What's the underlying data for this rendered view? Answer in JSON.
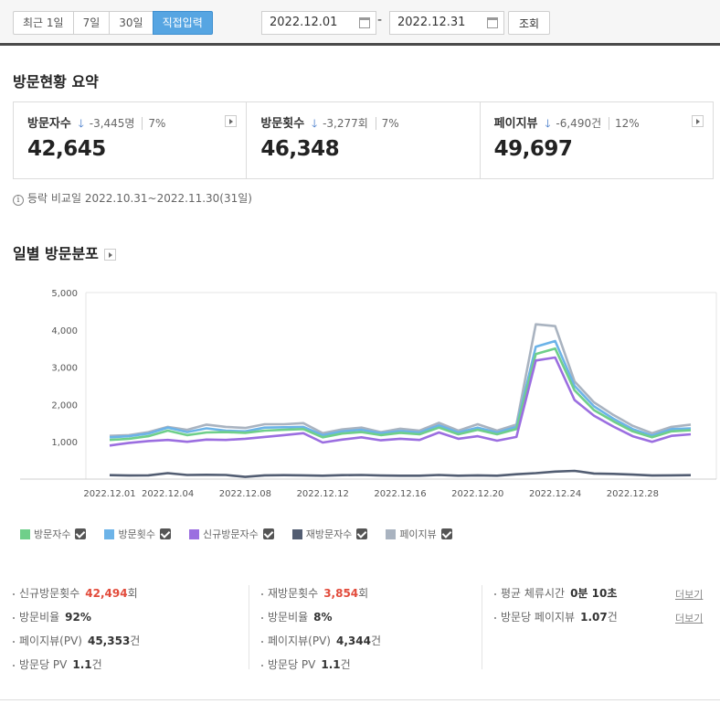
{
  "toolbar": {
    "period_buttons": [
      "최근 1일",
      "7일",
      "30일",
      "직접입력"
    ],
    "start_date": "2022.12.01",
    "date_separator": "-",
    "end_date": "2022.12.31",
    "search_label": "조회"
  },
  "summary": {
    "title": "방문현황 요약",
    "cards": [
      {
        "label": "방문자수",
        "delta": "-3,445명",
        "pct": "7%",
        "value": "42,645"
      },
      {
        "label": "방문횟수",
        "delta": "-3,277회",
        "pct": "7%",
        "value": "46,348"
      },
      {
        "label": "페이지뷰",
        "delta": "-6,490건",
        "pct": "12%",
        "value": "49,697"
      }
    ],
    "down_arrow": "🡓",
    "compare_note": "등락 비교일 2022.10.31~2022.11.30(31일)",
    "info_glyph": "i"
  },
  "daily": {
    "title": "일별 방문분포"
  },
  "chart_data": {
    "type": "line",
    "x": [
      "2022.12.01",
      "2022.12.02",
      "2022.12.03",
      "2022.12.04",
      "2022.12.05",
      "2022.12.06",
      "2022.12.07",
      "2022.12.08",
      "2022.12.09",
      "2022.12.10",
      "2022.12.11",
      "2022.12.12",
      "2022.12.13",
      "2022.12.14",
      "2022.12.15",
      "2022.12.16",
      "2022.12.17",
      "2022.12.18",
      "2022.12.19",
      "2022.12.20",
      "2022.12.21",
      "2022.12.22",
      "2022.12.23",
      "2022.12.24",
      "2022.12.25",
      "2022.12.26",
      "2022.12.27",
      "2022.12.28",
      "2022.12.29",
      "2022.12.30",
      "2022.12.31"
    ],
    "x_tick_labels": [
      "2022.12.01",
      "2022.12.04",
      "2022.12.08",
      "2022.12.12",
      "2022.12.16",
      "2022.12.20",
      "2022.12.24",
      "2022.12.28"
    ],
    "x_tick_indices": [
      0,
      3,
      7,
      11,
      15,
      19,
      23,
      27
    ],
    "y_ticks": [
      "5,000",
      "4,000",
      "3,000",
      "2,000",
      "1,000"
    ],
    "ylim": [
      0,
      5000
    ],
    "series": [
      {
        "name": "방문자수",
        "color": "#6fcf8a",
        "values": [
          1050,
          1080,
          1150,
          1300,
          1180,
          1250,
          1260,
          1240,
          1300,
          1320,
          1340,
          1120,
          1220,
          1260,
          1180,
          1240,
          1200,
          1380,
          1200,
          1320,
          1200,
          1340,
          3350,
          3500,
          2380,
          1850,
          1550,
          1280,
          1120,
          1280,
          1310
        ]
      },
      {
        "name": "방문횟수",
        "color": "#6cb3e8",
        "values": [
          1120,
          1150,
          1220,
          1380,
          1260,
          1360,
          1300,
          1280,
          1380,
          1390,
          1400,
          1180,
          1280,
          1320,
          1230,
          1290,
          1250,
          1440,
          1250,
          1380,
          1250,
          1400,
          3550,
          3700,
          2500,
          1950,
          1620,
          1340,
          1170,
          1340,
          1360
        ]
      },
      {
        "name": "신규방문자수",
        "color": "#9b6ee0",
        "values": [
          900,
          970,
          1020,
          1050,
          1000,
          1060,
          1050,
          1080,
          1130,
          1180,
          1230,
          980,
          1060,
          1120,
          1040,
          1080,
          1050,
          1250,
          1080,
          1150,
          1030,
          1130,
          3180,
          3260,
          2120,
          1700,
          1410,
          1150,
          1000,
          1160,
          1200
        ]
      },
      {
        "name": "재방문자수",
        "color": "#525d72",
        "values": [
          105,
          95,
          100,
          160,
          110,
          115,
          110,
          60,
          100,
          105,
          100,
          90,
          105,
          110,
          95,
          90,
          90,
          110,
          90,
          100,
          90,
          130,
          160,
          200,
          220,
          150,
          140,
          120,
          95,
          100,
          105
        ]
      },
      {
        "name": "페이지뷰",
        "color": "#a9b3c0",
        "values": [
          1160,
          1180,
          1260,
          1400,
          1320,
          1460,
          1400,
          1370,
          1470,
          1470,
          1500,
          1230,
          1330,
          1380,
          1260,
          1350,
          1300,
          1510,
          1300,
          1470,
          1300,
          1460,
          4150,
          4100,
          2620,
          2060,
          1720,
          1430,
          1230,
          1400,
          1460
        ]
      }
    ]
  },
  "stats": {
    "col1": [
      {
        "label": "신규방문횟수",
        "value": "42,494",
        "unit": "회",
        "red": true
      },
      {
        "label": "방문비율",
        "value": "92%",
        "unit": ""
      },
      {
        "label": "페이지뷰(PV)",
        "value": "45,353",
        "unit": "건"
      },
      {
        "label": "방문당 PV",
        "value": "1.1",
        "unit": "건"
      }
    ],
    "col2": [
      {
        "label": "재방문횟수",
        "value": "3,854",
        "unit": "회",
        "red": true
      },
      {
        "label": "방문비율",
        "value": "8%",
        "unit": ""
      },
      {
        "label": "페이지뷰(PV)",
        "value": "4,344",
        "unit": "건"
      },
      {
        "label": "방문당 PV",
        "value": "1.1",
        "unit": "건"
      }
    ],
    "col3": [
      {
        "label": "평균 체류시간",
        "value": "0분 10초",
        "unit": ""
      },
      {
        "label": "방문당 페이지뷰",
        "value": "1.07",
        "unit": "건"
      }
    ],
    "more_label": "더보기"
  }
}
